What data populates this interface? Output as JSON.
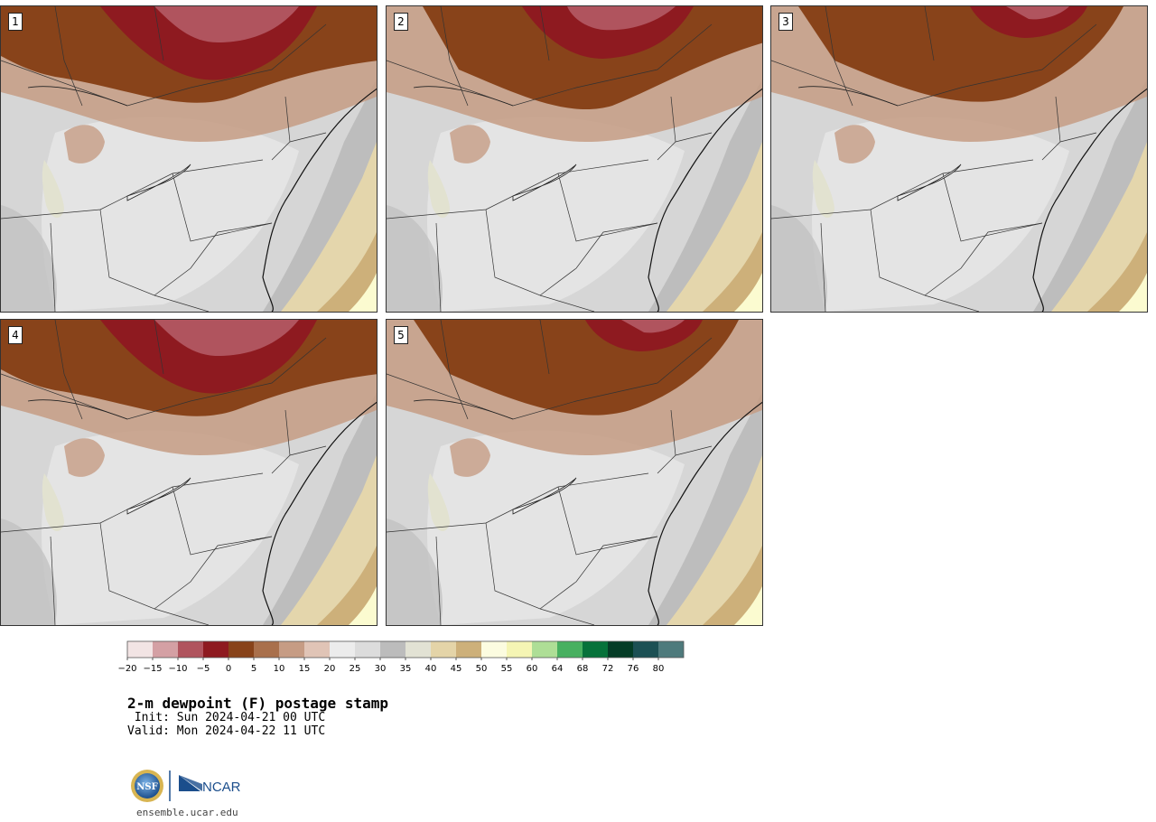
{
  "title": "2-m dewpoint (F) postage stamp",
  "init_line": " Init: Sun 2024-04-21 00 UTC",
  "valid_line": "Valid: Mon 2024-04-22 11 UTC",
  "site": "ensemble.ucar.edu",
  "logos": {
    "nsf": "NSF",
    "ncar": "NCAR"
  },
  "members": [
    {
      "label": "1",
      "cold": "heavy"
    },
    {
      "label": "2",
      "cold": "strong"
    },
    {
      "label": "3",
      "cold": "medium"
    },
    {
      "label": "4",
      "cold": "heavy"
    },
    {
      "label": "5",
      "cold": "medium"
    }
  ],
  "colorbar": {
    "ticks": [
      "−20",
      "−15",
      "−10",
      "−5",
      "0",
      "5",
      "10",
      "15",
      "20",
      "25",
      "30",
      "35",
      "40",
      "45",
      "50",
      "55",
      "60",
      "64",
      "68",
      "72",
      "76",
      "80"
    ],
    "colors": [
      "#f2e4e4",
      "#d4a0a4",
      "#b0545e",
      "#8e1a20",
      "#88431a",
      "#a9704c",
      "#c69c84",
      "#e0c4b6",
      "#ececec",
      "#dcdcdc",
      "#bcbcbc",
      "#e2e2d4",
      "#e4d4a8",
      "#cdb07a",
      "#fcfce0",
      "#f5f5b4",
      "#aede96",
      "#48b060",
      "#06723a",
      "#043c26",
      "#1c5054",
      "#4e7a7c"
    ]
  }
}
